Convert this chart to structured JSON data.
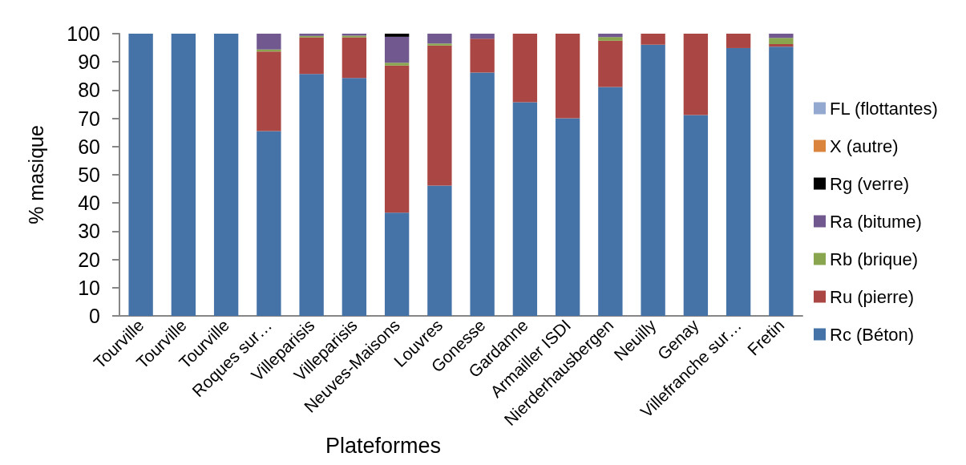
{
  "chart_data": {
    "type": "bar",
    "stacked": true,
    "xlabel": "Plateformes",
    "ylabel": "% masique",
    "categories": [
      "Tourville",
      "Tourville",
      "Tourville",
      "Roques sur…",
      "Villeparisis",
      "Villeparisis",
      "Neuves-Maisons",
      "Louvres",
      "Gonesse",
      "Gardanne",
      "Armailler ISDI",
      "Nierderhausbergen",
      "Neuilly",
      "Genay",
      "Villefranche sur…",
      "Fretin"
    ],
    "series": [
      {
        "name": "Rc (Béton)",
        "color": "#4572a7",
        "values": [
          100,
          100,
          100,
          65.5,
          85.7,
          84.3,
          36.6,
          46.2,
          86.2,
          75.7,
          70.0,
          81.1,
          96.1,
          71.2,
          94.9,
          95.4
        ]
      },
      {
        "name": "Ru (pierre)",
        "color": "#aa4643",
        "values": [
          null,
          null,
          null,
          28.2,
          13.0,
          14.4,
          52.1,
          49.6,
          12.0,
          24.3,
          30.0,
          16.4,
          3.9,
          28.8,
          5.1,
          0.9
        ]
      },
      {
        "name": "Rb (brique)",
        "color": "#89a54e",
        "values": [
          null,
          null,
          null,
          0.7,
          0.5,
          0.6,
          1.0,
          0.7,
          null,
          null,
          null,
          1.3,
          null,
          null,
          null,
          2.2
        ]
      },
      {
        "name": "Ra (bitume)",
        "color": "#71588f",
        "values": [
          null,
          null,
          null,
          5.6,
          0.8,
          0.7,
          9.2,
          3.5,
          1.8,
          null,
          null,
          1.2,
          null,
          null,
          null,
          1.5
        ]
      },
      {
        "name": "Rg (verre)",
        "color": "#000000",
        "values": [
          null,
          null,
          null,
          null,
          null,
          null,
          1.1,
          null,
          null,
          null,
          null,
          null,
          null,
          null,
          null,
          null
        ]
      },
      {
        "name": "X (autre)",
        "color": "#db843d",
        "values": [
          null,
          null,
          null,
          null,
          null,
          null,
          null,
          null,
          null,
          null,
          null,
          null,
          null,
          null,
          null,
          null
        ]
      },
      {
        "name": "FL (flottantes)",
        "color": "#93a9cf",
        "values": [
          null,
          null,
          null,
          null,
          null,
          null,
          null,
          null,
          null,
          null,
          null,
          null,
          null,
          null,
          null,
          null
        ]
      }
    ],
    "ylim": [
      0,
      100
    ],
    "yticks": [
      0,
      10,
      20,
      30,
      40,
      50,
      60,
      70,
      80,
      90,
      100
    ],
    "legend": "right"
  }
}
